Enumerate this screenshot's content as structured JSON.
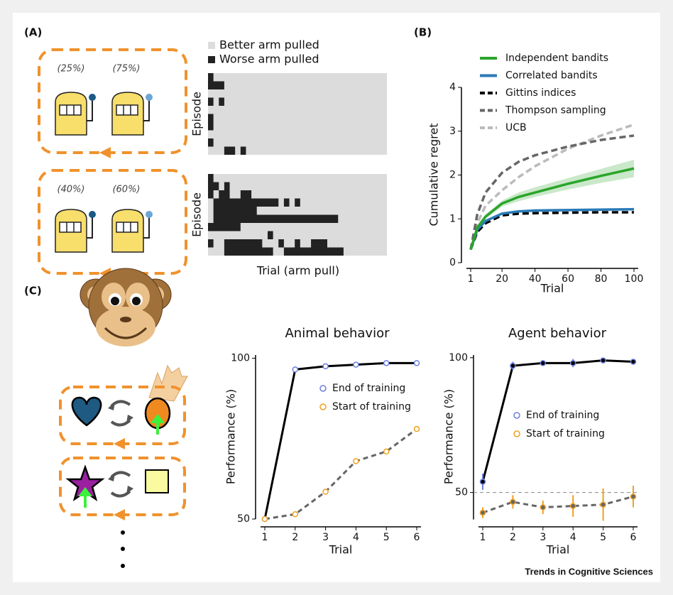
{
  "panel_labels": [
    "(A)",
    "(B)",
    "(C)"
  ],
  "footer": "Trends in Cognitive Sciences",
  "diagram": {
    "probabilities": [
      "(25%)",
      "(75%)",
      "(40%)",
      "(60%)"
    ]
  },
  "chart_data": [
    {
      "type": "raster",
      "xlabel": "Trial (arm pull)",
      "xlim": [
        0,
        33
      ],
      "series": [
        {
          "name": "Better arm pulled",
          "color": "#dcdcdc"
        },
        {
          "name": "Worse arm pulled",
          "color": "#222222"
        }
      ],
      "panels": [
        {
          "ylabel": "Episode",
          "rows": [
            [
              [
                0,
                1
              ]
            ],
            [
              [
                0,
                3
              ]
            ],
            [],
            [
              [
                0,
                1
              ],
              [
                2,
                3
              ]
            ],
            [],
            [
              [
                0,
                1
              ]
            ],
            [
              [
                0,
                1
              ]
            ],
            [],
            [
              [
                0,
                1
              ]
            ],
            [
              [
                3,
                5
              ],
              [
                6,
                7
              ]
            ]
          ]
        },
        {
          "ylabel": "Episode",
          "rows": [
            [
              [
                0,
                1
              ]
            ],
            [
              [
                0,
                2
              ],
              [
                3,
                4
              ]
            ],
            [
              [
                0,
                1
              ],
              [
                2,
                4
              ],
              [
                6,
                8
              ]
            ],
            [
              [
                1,
                13
              ],
              [
                14,
                15
              ],
              [
                16,
                17
              ]
            ],
            [
              [
                1,
                9
              ]
            ],
            [
              [
                1,
                24
              ]
            ],
            [
              [
                0,
                6
              ]
            ],
            [
              [
                11,
                12
              ]
            ],
            [
              [
                0,
                1
              ],
              [
                3,
                10
              ],
              [
                13,
                14
              ],
              [
                16,
                17
              ],
              [
                19,
                22
              ]
            ],
            [
              [
                3,
                12
              ],
              [
                14,
                25
              ]
            ]
          ]
        }
      ]
    },
    {
      "type": "line",
      "xlabel": "Trial",
      "ylabel": "Cumulative regret",
      "x": [
        1,
        5,
        10,
        20,
        30,
        40,
        60,
        80,
        100
      ],
      "xlim": [
        1,
        100
      ],
      "ylim": [
        0,
        4
      ],
      "xticks": [
        1,
        20,
        40,
        60,
        80,
        100
      ],
      "yticks": [
        0,
        1,
        2,
        3,
        4
      ],
      "series": [
        {
          "name": "Independent bandits",
          "color": "#2aa52a",
          "dash": false,
          "values": [
            0.3,
            0.8,
            1.05,
            1.35,
            1.5,
            1.6,
            1.8,
            1.98,
            2.15
          ],
          "band_lower": [
            0.3,
            0.78,
            1.0,
            1.28,
            1.4,
            1.5,
            1.67,
            1.82,
            1.95
          ],
          "band_upper": [
            0.32,
            0.85,
            1.1,
            1.42,
            1.6,
            1.72,
            1.93,
            2.14,
            2.35
          ]
        },
        {
          "name": "Correlated bandits",
          "color": "#2a7ab8",
          "dash": false,
          "values": [
            0.3,
            0.75,
            0.95,
            1.12,
            1.17,
            1.19,
            1.2,
            1.21,
            1.22
          ],
          "band_lower": [
            0.29,
            0.72,
            0.92,
            1.09,
            1.14,
            1.16,
            1.17,
            1.18,
            1.19
          ],
          "band_upper": [
            0.31,
            0.78,
            0.98,
            1.15,
            1.2,
            1.22,
            1.23,
            1.24,
            1.25
          ]
        },
        {
          "name": "Gittins indices",
          "color": "#000000",
          "dash": true,
          "values": [
            0.3,
            0.7,
            0.9,
            1.08,
            1.12,
            1.13,
            1.14,
            1.15,
            1.15
          ]
        },
        {
          "name": "Thompson sampling",
          "color": "#666666",
          "dash": true,
          "values": [
            0.3,
            1.1,
            1.6,
            2.05,
            2.3,
            2.45,
            2.65,
            2.8,
            2.9
          ]
        },
        {
          "name": "UCB",
          "color": "#bbbbbb",
          "dash": true,
          "values": [
            0.3,
            0.9,
            1.3,
            1.65,
            1.95,
            2.2,
            2.6,
            2.9,
            3.15
          ]
        }
      ]
    },
    {
      "type": "point-line",
      "title": "Animal behavior",
      "xlabel": "Trial",
      "ylabel": "Performance (%)",
      "x": [
        1,
        2,
        3,
        4,
        5,
        6
      ],
      "xlim": [
        1,
        6
      ],
      "ylim": [
        50,
        101
      ],
      "xticks": [
        1,
        2,
        3,
        4,
        5,
        6
      ],
      "yticks": [
        50,
        100
      ],
      "series": [
        {
          "name": "End of training",
          "color": "#000000",
          "marker_color": "#6a7fe0",
          "dash": false,
          "values": [
            50,
            96.5,
            97.5,
            98,
            98.5,
            98.5
          ]
        },
        {
          "name": "Start of training",
          "color": "#666666",
          "marker_color": "#f0a020",
          "dash": true,
          "values": [
            50,
            51.5,
            58.5,
            68,
            71,
            78
          ]
        }
      ]
    },
    {
      "type": "point-line",
      "title": "Agent behavior",
      "xlabel": "Trial",
      "ylabel": "Performance (%)",
      "x": [
        1,
        2,
        3,
        4,
        5,
        6
      ],
      "xlim": [
        1,
        6
      ],
      "ylim": [
        40,
        101
      ],
      "xticks": [
        1,
        2,
        3,
        4,
        5,
        6
      ],
      "yticks": [
        50,
        100
      ],
      "reference_line": 50,
      "series": [
        {
          "name": "End of training",
          "color": "#000000",
          "marker_color": "#6a7fe0",
          "dash": false,
          "values": [
            54,
            97,
            98,
            98,
            99,
            98.5
          ],
          "errors": [
            3,
            1.5,
            1,
            1.5,
            1,
            1
          ]
        },
        {
          "name": "Start of training",
          "color": "#666666",
          "marker_color": "#f0a020",
          "dash": true,
          "values": [
            42.5,
            46.5,
            44.5,
            45,
            45.5,
            48.5
          ],
          "errors": [
            2,
            2.5,
            2.5,
            4,
            6,
            4
          ]
        }
      ]
    }
  ]
}
